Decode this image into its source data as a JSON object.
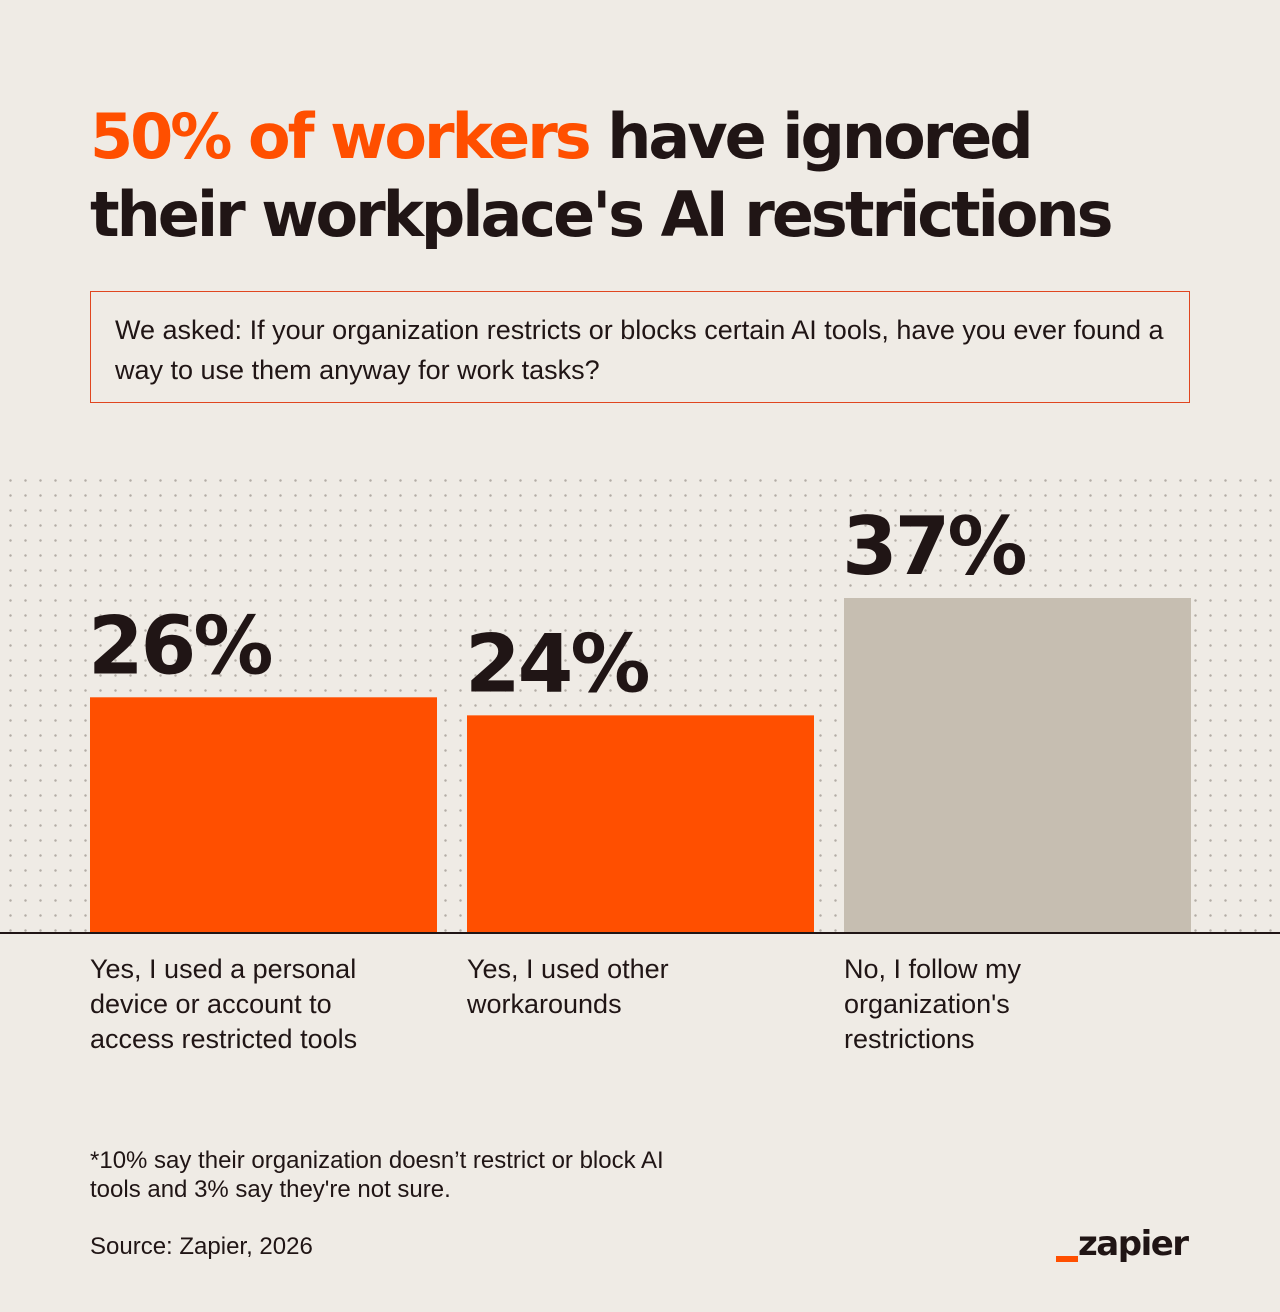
{
  "title": {
    "highlight": "50% of workers",
    "rest_line1": " have ignored",
    "line2": "their workplace's AI restrictions"
  },
  "question": "We asked: If your organization restricts or blocks certain AI tools, have you ever found a way to use them anyway for work tasks?",
  "colors": {
    "accent": "#ff4f00",
    "neutral_bar": "#c6beb1",
    "text": "#201515",
    "background": "#efebe5"
  },
  "chart_data": {
    "type": "bar",
    "categories": [
      "Yes, I used a personal device or account to access restricted tools",
      "Yes, I used other workarounds",
      "No, I follow my organization's restrictions"
    ],
    "values": [
      26,
      24,
      37
    ],
    "value_labels": [
      "26%",
      "24%",
      "37%"
    ],
    "bar_colors": [
      "#ff4f00",
      "#ff4f00",
      "#c6beb1"
    ],
    "unit": "%",
    "ylim": [
      0,
      37
    ],
    "grid": false,
    "legend": "none"
  },
  "footnote": "*10% say their organization doesn’t restrict or block AI tools and 3% say they're not sure.",
  "source": "Source: Zapier, 2026",
  "logo": {
    "text": "zapier"
  }
}
